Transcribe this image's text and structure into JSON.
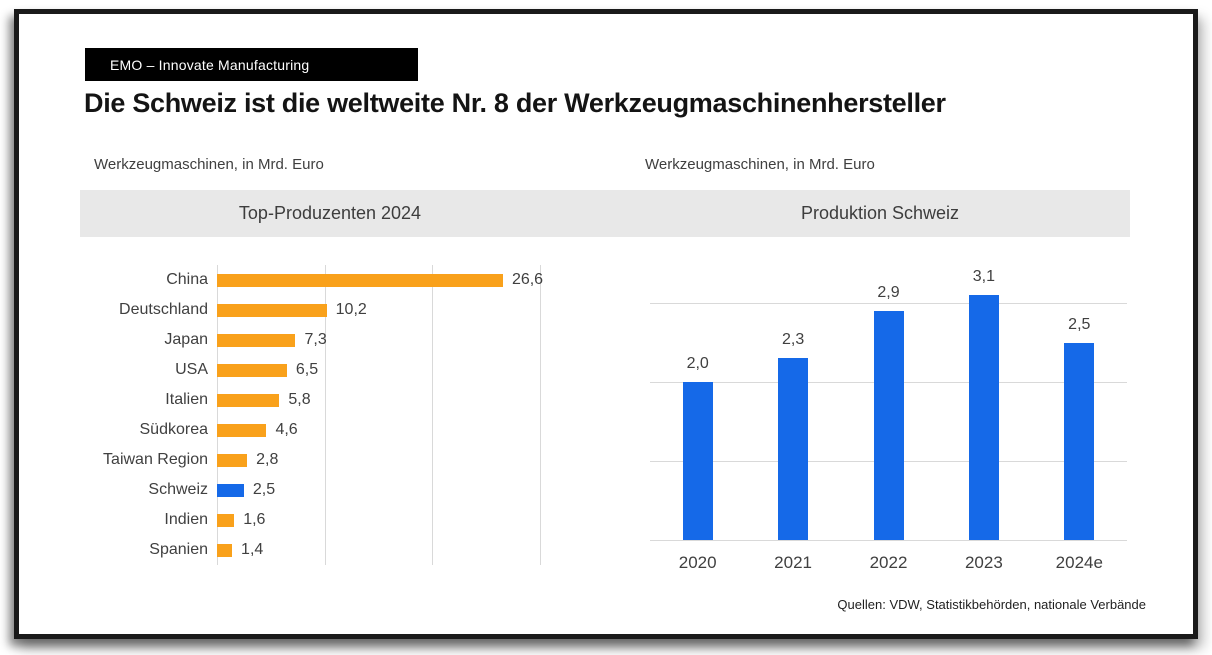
{
  "header": {
    "banner": "EMO – Innovate Manufacturing",
    "title": "Die Schweiz ist die weltweite Nr. 8 der Werkzeugmaschinenhersteller"
  },
  "source": "Quellen: VDW, Statistikbehörden, nationale Verbände",
  "colors": {
    "orange": "#F9A11B",
    "blue": "#1569E8",
    "gridline": "#D9D9D9",
    "band_bg": "#E8E8E8",
    "banner_bg": "#000000",
    "banner_text": "#FFFFFF",
    "label_text": "#404040"
  },
  "chart_data": [
    {
      "id": "top_producers",
      "type": "bar",
      "orientation": "horizontal",
      "subtitle": "Werkzeugmaschinen, in Mrd. Euro",
      "header": "Top-Produzenten 2024",
      "categories": [
        "China",
        "Deutschland",
        "Japan",
        "USA",
        "Italien",
        "Südkorea",
        "Taiwan Region",
        "Schweiz",
        "Indien",
        "Spanien"
      ],
      "values": [
        26.6,
        10.2,
        7.3,
        6.5,
        5.8,
        4.6,
        2.8,
        2.5,
        1.6,
        1.4
      ],
      "value_labels": [
        "26,6",
        "10,2",
        "7,3",
        "6,5",
        "5,8",
        "4,6",
        "2,8",
        "2,5",
        "1,6",
        "1,4"
      ],
      "highlight_category": "Schweiz",
      "xlim": [
        0,
        30
      ],
      "gridlines_at": [
        0,
        10,
        20,
        30
      ],
      "grid": true,
      "legend": "none",
      "unit": "Mrd. Euro"
    },
    {
      "id": "swiss_production",
      "type": "bar",
      "orientation": "vertical",
      "subtitle": "Werkzeugmaschinen, in Mrd. Euro",
      "header": "Produktion Schweiz",
      "categories": [
        "2020",
        "2021",
        "2022",
        "2023",
        "2024e"
      ],
      "values": [
        2.0,
        2.3,
        2.9,
        3.1,
        2.5
      ],
      "value_labels": [
        "2,0",
        "2,3",
        "2,9",
        "3,1",
        "2,5"
      ],
      "ylim": [
        0,
        3.5
      ],
      "gridlines_at": [
        0,
        1,
        2,
        3
      ],
      "grid": true,
      "legend": "none",
      "unit": "Mrd. Euro"
    }
  ]
}
